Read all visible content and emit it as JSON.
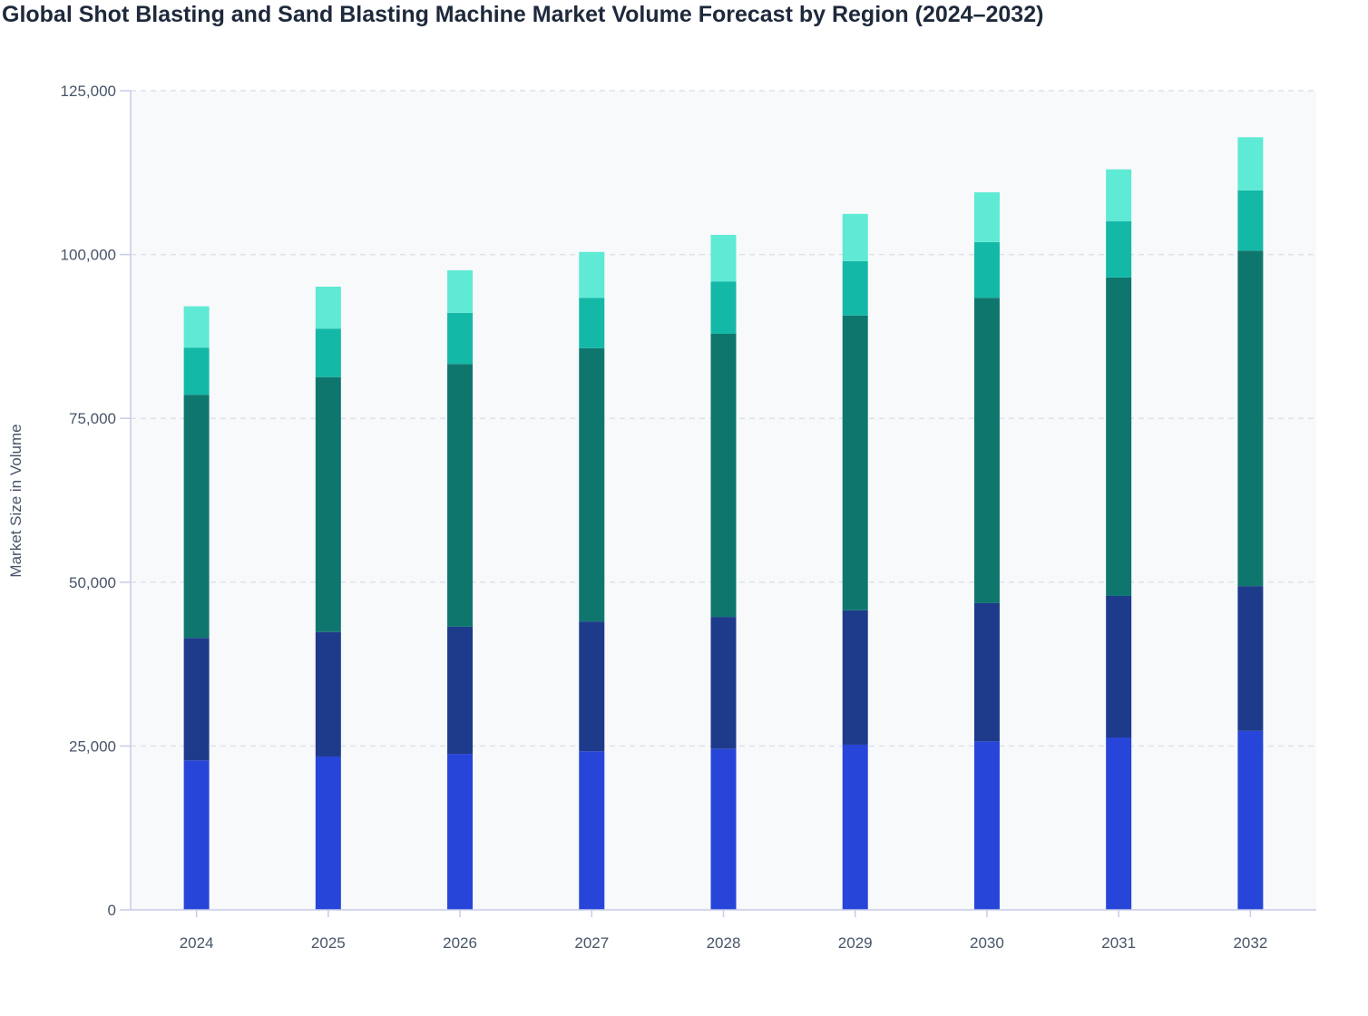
{
  "chart_data": {
    "type": "bar",
    "stacked": true,
    "title": "Global Shot Blasting and Sand Blasting Machine Market Volume Forecast by Region (2024–2032)",
    "xlabel": "",
    "ylabel": "Market Size in Volume",
    "ylim": [
      0,
      125000
    ],
    "yticks": [
      "0",
      "25,000",
      "50,000",
      "75,000",
      "100,000",
      "125,000"
    ],
    "ytick_values": [
      0,
      25000,
      50000,
      75000,
      100000,
      125000
    ],
    "grid": true,
    "legend": "none",
    "categories": [
      "2024",
      "2025",
      "2026",
      "2027",
      "2028",
      "2029",
      "2030",
      "2031",
      "2032"
    ],
    "series": [
      {
        "color": "#2745d9",
        "values": [
          22800,
          23400,
          23800,
          24200,
          24600,
          25200,
          25700,
          26300,
          27300
        ]
      },
      {
        "color": "#1e3a8a",
        "values": [
          18700,
          19000,
          19400,
          19800,
          20100,
          20500,
          21100,
          21600,
          22100
        ]
      },
      {
        "color": "#0f766e",
        "values": [
          37100,
          38900,
          40100,
          41700,
          43200,
          45000,
          46600,
          48600,
          51200
        ]
      },
      {
        "color": "#14b8a6",
        "values": [
          7200,
          7400,
          7800,
          7700,
          8000,
          8300,
          8500,
          8600,
          9200
        ]
      },
      {
        "color": "#5eead4",
        "values": [
          6300,
          6400,
          6500,
          7000,
          7100,
          7200,
          7600,
          7900,
          8100
        ]
      }
    ]
  }
}
